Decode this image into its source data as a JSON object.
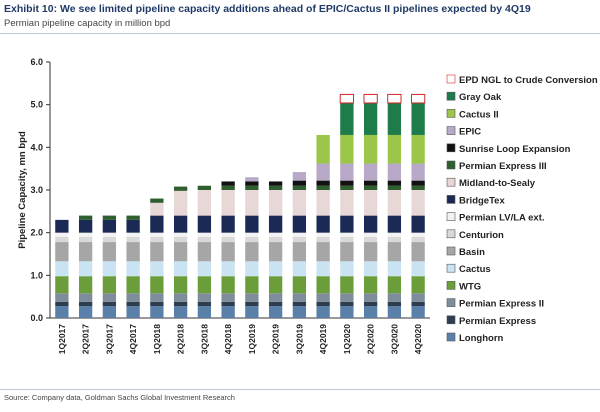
{
  "header": {
    "title": "Exhibit 10: We see limited pipeline capacity additions ahead of EPIC/Cactus II pipelines expected by 4Q19",
    "subtitle": "Permian pipeline capacity in million bpd"
  },
  "footer": {
    "source": "Source: Company data, Goldman Sachs Global Investment Research"
  },
  "chart_data": {
    "type": "bar",
    "stacked": true,
    "ylabel": "Pipeline Capacity, mn bpd",
    "ylim": [
      0,
      6
    ],
    "yticks": [
      "0.0",
      "1.0",
      "2.0",
      "3.0",
      "4.0",
      "5.0",
      "6.0"
    ],
    "categories": [
      "1Q2017",
      "2Q2017",
      "3Q2017",
      "4Q2017",
      "1Q2018",
      "2Q2018",
      "3Q2018",
      "4Q2018",
      "1Q2019",
      "2Q2019",
      "3Q2019",
      "4Q2019",
      "1Q2020",
      "2Q2020",
      "3Q2020",
      "4Q2020"
    ],
    "legend_position": "right",
    "series": [
      {
        "name": "Longhorn",
        "color": "#5a7fa8",
        "values": [
          0.28,
          0.28,
          0.28,
          0.28,
          0.28,
          0.28,
          0.28,
          0.28,
          0.28,
          0.28,
          0.28,
          0.28,
          0.28,
          0.28,
          0.28,
          0.28
        ]
      },
      {
        "name": "Permian Express",
        "color": "#2c3e50",
        "values": [
          0.1,
          0.1,
          0.1,
          0.1,
          0.1,
          0.1,
          0.1,
          0.1,
          0.1,
          0.1,
          0.1,
          0.1,
          0.1,
          0.1,
          0.1,
          0.1
        ]
      },
      {
        "name": "Permian Express II",
        "color": "#7f8c9a",
        "values": [
          0.2,
          0.2,
          0.2,
          0.2,
          0.2,
          0.2,
          0.2,
          0.2,
          0.2,
          0.2,
          0.2,
          0.2,
          0.2,
          0.2,
          0.2,
          0.2
        ]
      },
      {
        "name": "WTG",
        "color": "#6b9e3a",
        "values": [
          0.4,
          0.4,
          0.4,
          0.4,
          0.4,
          0.4,
          0.4,
          0.4,
          0.4,
          0.4,
          0.4,
          0.4,
          0.4,
          0.4,
          0.4,
          0.4
        ]
      },
      {
        "name": "Cactus",
        "color": "#c9e3f2",
        "values": [
          0.35,
          0.35,
          0.35,
          0.35,
          0.35,
          0.35,
          0.35,
          0.35,
          0.35,
          0.35,
          0.35,
          0.35,
          0.35,
          0.35,
          0.35,
          0.35
        ]
      },
      {
        "name": "Basin",
        "color": "#a6a6a6",
        "values": [
          0.45,
          0.45,
          0.45,
          0.45,
          0.45,
          0.45,
          0.45,
          0.45,
          0.45,
          0.45,
          0.45,
          0.45,
          0.45,
          0.45,
          0.45,
          0.45
        ]
      },
      {
        "name": "Centurion",
        "color": "#d9d9d9",
        "values": [
          0.12,
          0.12,
          0.12,
          0.12,
          0.12,
          0.12,
          0.12,
          0.12,
          0.12,
          0.12,
          0.12,
          0.12,
          0.12,
          0.12,
          0.12,
          0.12
        ]
      },
      {
        "name": "Permian LV/LA ext.",
        "color": "#f2f2f2",
        "values": [
          0.1,
          0.1,
          0.1,
          0.1,
          0.1,
          0.1,
          0.1,
          0.1,
          0.1,
          0.1,
          0.1,
          0.1,
          0.1,
          0.1,
          0.1,
          0.1
        ]
      },
      {
        "name": "BridgeTex",
        "color": "#1a2a55",
        "values": [
          0.3,
          0.3,
          0.3,
          0.3,
          0.4,
          0.4,
          0.4,
          0.4,
          0.4,
          0.4,
          0.4,
          0.4,
          0.4,
          0.4,
          0.4,
          0.4
        ]
      },
      {
        "name": "Midland-to-Sealy",
        "color": "#e8d7d7",
        "values": [
          0,
          0,
          0,
          0,
          0.3,
          0.58,
          0.6,
          0.6,
          0.6,
          0.6,
          0.6,
          0.6,
          0.6,
          0.6,
          0.6,
          0.6
        ]
      },
      {
        "name": "Permian Express III",
        "color": "#2f5e2f",
        "values": [
          0,
          0.1,
          0.1,
          0.1,
          0.1,
          0.1,
          0.1,
          0.1,
          0.1,
          0.1,
          0.1,
          0.1,
          0.1,
          0.1,
          0.1,
          0.1
        ]
      },
      {
        "name": "Sunrise Loop Expansion",
        "color": "#111111",
        "values": [
          0,
          0,
          0,
          0,
          0,
          0,
          0,
          0.1,
          0.1,
          0.1,
          0.12,
          0.12,
          0.12,
          0.12,
          0.12,
          0.12
        ]
      },
      {
        "name": "EPIC",
        "color": "#b8a9c9",
        "values": [
          0,
          0,
          0,
          0,
          0,
          0,
          0,
          0,
          0.1,
          0,
          0.2,
          0.4,
          0.4,
          0.4,
          0.4,
          0.4
        ]
      },
      {
        "name": "Cactus II",
        "color": "#9cc64a",
        "values": [
          0,
          0,
          0,
          0,
          0,
          0,
          0,
          0,
          0,
          0,
          0,
          0.67,
          0.67,
          0.67,
          0.67,
          0.67
        ]
      },
      {
        "name": "Gray Oak",
        "color": "#1e7b4a",
        "values": [
          0,
          0,
          0,
          0,
          0,
          0,
          0,
          0,
          0,
          0,
          0,
          0,
          0.75,
          0.75,
          0.75,
          0.75
        ]
      },
      {
        "name": "EPD NGL to Crude Conversion",
        "color": "#ffffff",
        "outline": "#d62728",
        "values": [
          0,
          0,
          0,
          0,
          0,
          0,
          0,
          0,
          0,
          0,
          0,
          0,
          0.2,
          0.2,
          0.2,
          0.2
        ]
      }
    ]
  }
}
